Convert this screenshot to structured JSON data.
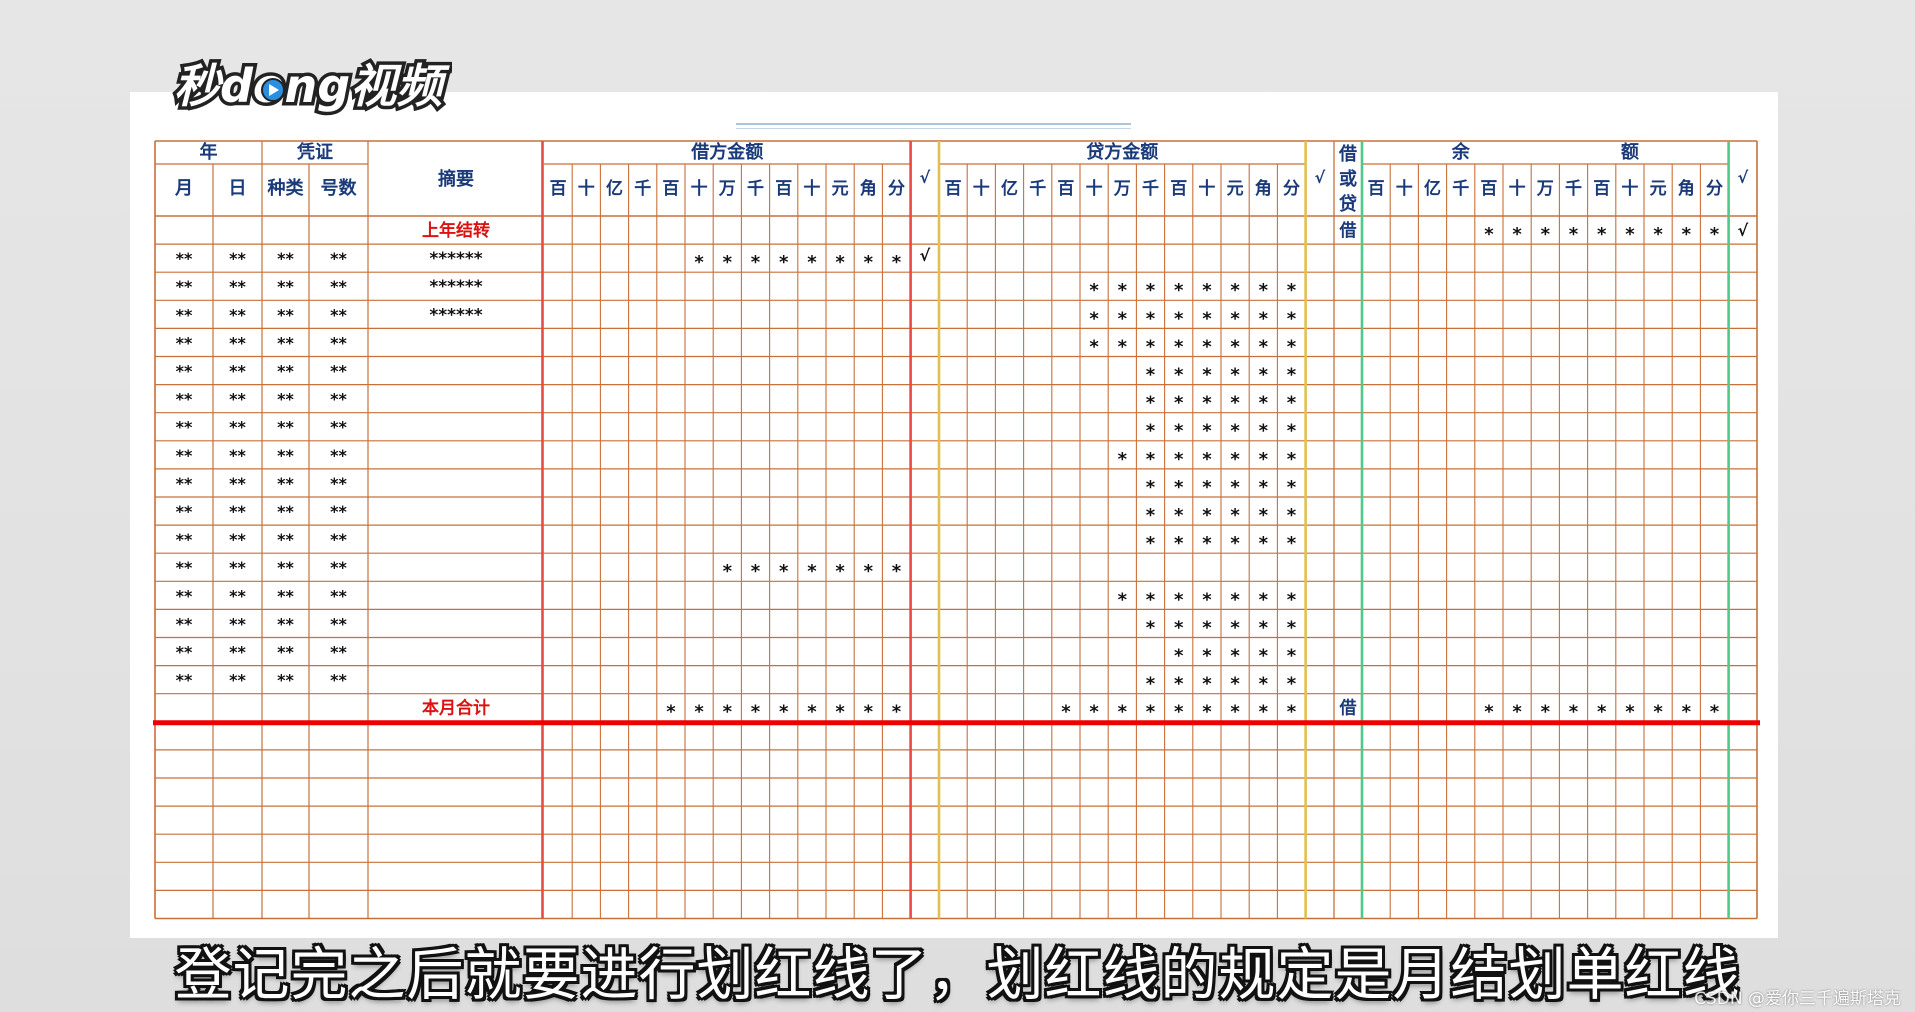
{
  "logo": {
    "text": "秒dong视频",
    "name": "miaodong-video-logo"
  },
  "ledger": {
    "headers": {
      "year": "年",
      "voucher": "凭证",
      "summary": "摘要",
      "month": "月",
      "day": "日",
      "voucher_type": "种类",
      "voucher_no": "号数",
      "debit_amount": "借方金额",
      "credit_amount": "贷方金额",
      "direction": [
        "借",
        "或",
        "贷"
      ],
      "balance_left": "余",
      "balance_right": "额",
      "check": "√"
    },
    "digit_units": [
      "百",
      "十",
      "亿",
      "千",
      "百",
      "十",
      "万",
      "千",
      "百",
      "十",
      "元",
      "角",
      "分"
    ],
    "colors": {
      "grid": "#c8703a",
      "header_text": "#1a3a7a",
      "red_text": "#dd1111",
      "debit_separator": "#e84a4a",
      "credit_separator": "#e0c050",
      "balance_separator": "#4fc98a",
      "closing_line": "#ee0000"
    },
    "rows": [
      {
        "month": "",
        "day": "",
        "type": "",
        "no": "",
        "summary": "上年结转",
        "summary_red": true,
        "debit_start": null,
        "debit_check": "",
        "credit_start": null,
        "direction": "借",
        "balance_start": 4,
        "balance_check": "√"
      },
      {
        "month": "**",
        "day": "**",
        "type": "**",
        "no": "**",
        "summary": "******",
        "summary_red": false,
        "debit_start": 5,
        "debit_check": "√",
        "credit_start": null,
        "direction": "",
        "balance_start": null,
        "balance_check": ""
      },
      {
        "month": "**",
        "day": "**",
        "type": "**",
        "no": "**",
        "summary": "******",
        "summary_red": false,
        "debit_start": null,
        "debit_check": "",
        "credit_start": 5,
        "direction": "",
        "balance_start": null,
        "balance_check": ""
      },
      {
        "month": "**",
        "day": "**",
        "type": "**",
        "no": "**",
        "summary": "******",
        "summary_red": false,
        "debit_start": null,
        "debit_check": "",
        "credit_start": 5,
        "direction": "",
        "balance_start": null,
        "balance_check": ""
      },
      {
        "month": "**",
        "day": "**",
        "type": "**",
        "no": "**",
        "summary": "",
        "summary_red": false,
        "debit_start": null,
        "debit_check": "",
        "credit_start": 5,
        "direction": "",
        "balance_start": null,
        "balance_check": ""
      },
      {
        "month": "**",
        "day": "**",
        "type": "**",
        "no": "**",
        "summary": "",
        "summary_red": false,
        "debit_start": null,
        "debit_check": "",
        "credit_start": 7,
        "direction": "",
        "balance_start": null,
        "balance_check": ""
      },
      {
        "month": "**",
        "day": "**",
        "type": "**",
        "no": "**",
        "summary": "",
        "summary_red": false,
        "debit_start": null,
        "debit_check": "",
        "credit_start": 7,
        "direction": "",
        "balance_start": null,
        "balance_check": ""
      },
      {
        "month": "**",
        "day": "**",
        "type": "**",
        "no": "**",
        "summary": "",
        "summary_red": false,
        "debit_start": null,
        "debit_check": "",
        "credit_start": 7,
        "direction": "",
        "balance_start": null,
        "balance_check": ""
      },
      {
        "month": "**",
        "day": "**",
        "type": "**",
        "no": "**",
        "summary": "",
        "summary_red": false,
        "debit_start": null,
        "debit_check": "",
        "credit_start": 6,
        "direction": "",
        "balance_start": null,
        "balance_check": ""
      },
      {
        "month": "**",
        "day": "**",
        "type": "**",
        "no": "**",
        "summary": "",
        "summary_red": false,
        "debit_start": null,
        "debit_check": "",
        "credit_start": 7,
        "direction": "",
        "balance_start": null,
        "balance_check": ""
      },
      {
        "month": "**",
        "day": "**",
        "type": "**",
        "no": "**",
        "summary": "",
        "summary_red": false,
        "debit_start": null,
        "debit_check": "",
        "credit_start": 7,
        "direction": "",
        "balance_start": null,
        "balance_check": ""
      },
      {
        "month": "**",
        "day": "**",
        "type": "**",
        "no": "**",
        "summary": "",
        "summary_red": false,
        "debit_start": null,
        "debit_check": "",
        "credit_start": 7,
        "direction": "",
        "balance_start": null,
        "balance_check": ""
      },
      {
        "month": "**",
        "day": "**",
        "type": "**",
        "no": "**",
        "summary": "",
        "summary_red": false,
        "debit_start": 6,
        "debit_check": "",
        "credit_start": null,
        "direction": "",
        "balance_start": null,
        "balance_check": ""
      },
      {
        "month": "**",
        "day": "**",
        "type": "**",
        "no": "**",
        "summary": "",
        "summary_red": false,
        "debit_start": null,
        "debit_check": "",
        "credit_start": 6,
        "direction": "",
        "balance_start": null,
        "balance_check": ""
      },
      {
        "month": "**",
        "day": "**",
        "type": "**",
        "no": "**",
        "summary": "",
        "summary_red": false,
        "debit_start": null,
        "debit_check": "",
        "credit_start": 7,
        "direction": "",
        "balance_start": null,
        "balance_check": ""
      },
      {
        "month": "**",
        "day": "**",
        "type": "**",
        "no": "**",
        "summary": "",
        "summary_red": false,
        "debit_start": null,
        "debit_check": "",
        "credit_start": 8,
        "direction": "",
        "balance_start": null,
        "balance_check": ""
      },
      {
        "month": "**",
        "day": "**",
        "type": "**",
        "no": "**",
        "summary": "",
        "summary_red": false,
        "debit_start": null,
        "debit_check": "",
        "credit_start": 7,
        "direction": "",
        "balance_start": null,
        "balance_check": ""
      },
      {
        "month": "",
        "day": "",
        "type": "",
        "no": "",
        "summary": "本月合计",
        "summary_red": true,
        "debit_start": 4,
        "debit_check": "",
        "credit_start": 4,
        "direction": "借",
        "balance_start": 4,
        "balance_check": ""
      }
    ],
    "blank_rows": 7,
    "amount_marker": "*"
  },
  "subtitle": "登记完之后就要进行划红线了，划红线的规定是月结划单红线",
  "watermark": "CSDN @爱你三千遍斯塔克"
}
